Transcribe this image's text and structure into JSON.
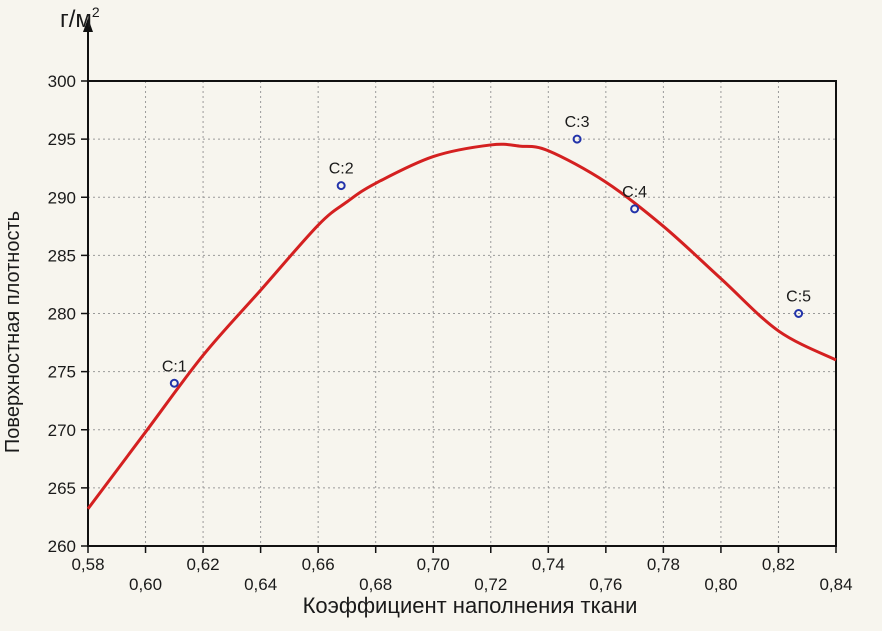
{
  "chart_data": {
    "type": "scatter",
    "title": "",
    "unit_label_base": "г/м",
    "unit_label_exp": "2",
    "xlabel": "Коэффициент наполнения ткани",
    "ylabel": "Поверхностная плотность",
    "xlim": [
      0.58,
      0.84
    ],
    "ylim": [
      260,
      300
    ],
    "x_ticks": [
      0.58,
      0.6,
      0.62,
      0.64,
      0.66,
      0.68,
      0.7,
      0.72,
      0.74,
      0.76,
      0.78,
      0.8,
      0.82,
      0.84
    ],
    "x_tick_labels": [
      "0,58",
      "0,60",
      "0,62",
      "0,64",
      "0,66",
      "0,68",
      "0,70",
      "0,72",
      "0,74",
      "0,76",
      "0,78",
      "0,80",
      "0,82",
      "0,84"
    ],
    "y_ticks": [
      260,
      265,
      270,
      275,
      280,
      285,
      290,
      295,
      300
    ],
    "y_tick_labels": [
      "260",
      "265",
      "270",
      "275",
      "280",
      "285",
      "290",
      "295",
      "300"
    ],
    "grid": true,
    "points": [
      {
        "label": "C:1",
        "x": 0.61,
        "y": 274.0
      },
      {
        "label": "C:2",
        "x": 0.668,
        "y": 291.0
      },
      {
        "label": "C:3",
        "x": 0.75,
        "y": 295.0
      },
      {
        "label": "C:4",
        "x": 0.77,
        "y": 289.0
      },
      {
        "label": "C:5",
        "x": 0.827,
        "y": 280.0
      }
    ],
    "fit_curve": {
      "type": "quadratic",
      "color": "#d42020",
      "points": [
        [
          0.58,
          263.2
        ],
        [
          0.6,
          269.8
        ],
        [
          0.62,
          276.4
        ],
        [
          0.64,
          282.0
        ],
        [
          0.66,
          287.6
        ],
        [
          0.67,
          289.6
        ],
        [
          0.68,
          291.2
        ],
        [
          0.7,
          293.5
        ],
        [
          0.72,
          294.5
        ],
        [
          0.73,
          294.4
        ],
        [
          0.74,
          294.0
        ],
        [
          0.76,
          291.3
        ],
        [
          0.78,
          287.5
        ],
        [
          0.8,
          283.0
        ],
        [
          0.82,
          278.5
        ],
        [
          0.84,
          276.0
        ]
      ]
    },
    "point_color": "#2233aa",
    "axis_color": "#111111",
    "grid_color": "#9a9a9a"
  }
}
